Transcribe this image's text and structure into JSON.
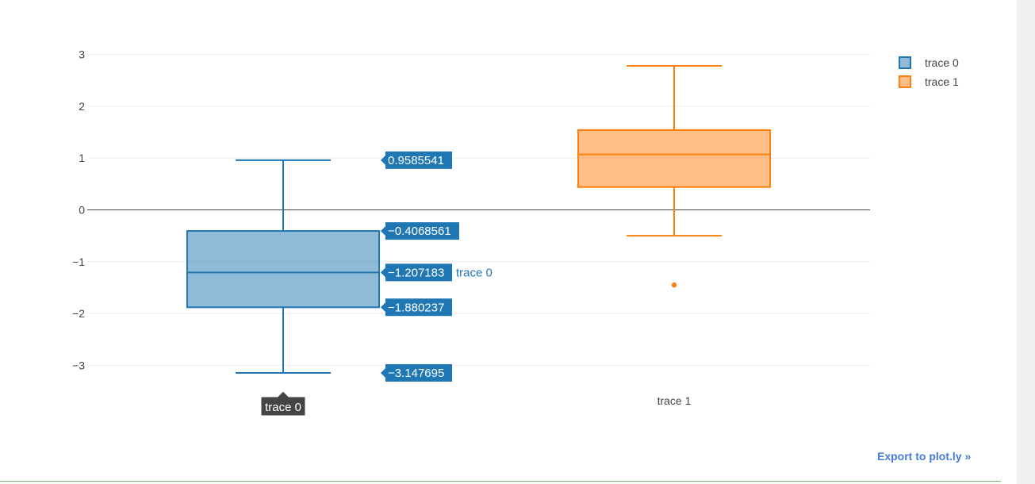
{
  "chart_data": {
    "type": "box",
    "y_ticks": [
      "3",
      "2",
      "1",
      "0",
      "−1",
      "−2",
      "−3"
    ],
    "y_tick_values": [
      3,
      2,
      1,
      0,
      -1,
      -2,
      -3
    ],
    "ylim": [
      -3.4,
      3.0
    ],
    "grid": true,
    "zeroline": true,
    "legend_position": "top-right",
    "series": [
      {
        "name": "trace 0",
        "color": "#1f77b4",
        "fill": "rgba(31,119,180,0.5)",
        "lower_whisker": -3.147695,
        "q1": -1.880237,
        "median": -1.207183,
        "q3": -0.4068561,
        "upper_whisker": 0.9585541,
        "outliers": []
      },
      {
        "name": "trace 1",
        "color": "#ff7f0e",
        "fill": "rgba(255,127,14,0.5)",
        "lower_whisker": -0.5,
        "q1": 0.44,
        "median": 1.07,
        "q3": 1.54,
        "upper_whisker": 2.78,
        "outliers": [
          -1.45
        ]
      }
    ],
    "hover": {
      "trace": "trace 0",
      "x_label": "trace 0",
      "series_label": "trace 0",
      "labels": [
        "0.9585541",
        "−0.4068561",
        "−1.207183",
        "−1.880237",
        "−3.147695"
      ]
    }
  },
  "export_link": "Export to plot.ly »"
}
